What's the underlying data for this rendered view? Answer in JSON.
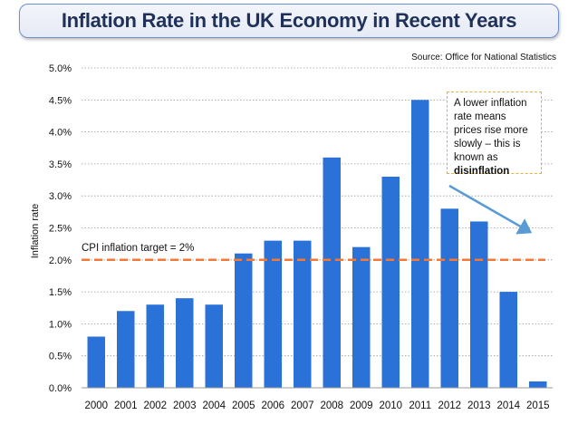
{
  "title": "Inflation Rate in the UK Economy in Recent Years",
  "source": "Source: Office for National Statistics",
  "target_label": "CPI inflation target = 2%",
  "annotation": {
    "text": "A lower inflation rate means prices rise more slowly – this is known as",
    "emphasis": "disinflation"
  },
  "colors": {
    "bar": "#2a72d8",
    "target_line": "#f07a3c",
    "arrow": "#5b9bd5",
    "title_border": "#6f8fd0"
  },
  "chart_data": {
    "type": "bar",
    "title": "Inflation Rate in the UK Economy in Recent Years",
    "xlabel": "",
    "ylabel": "Inflation rate",
    "categories": [
      "2000",
      "2001",
      "2002",
      "2003",
      "2004",
      "2005",
      "2006",
      "2007",
      "2008",
      "2009",
      "2010",
      "2011",
      "2012",
      "2013",
      "2014",
      "2015"
    ],
    "values": [
      0.8,
      1.2,
      1.3,
      1.4,
      1.3,
      2.1,
      2.3,
      2.3,
      3.6,
      2.2,
      3.3,
      4.5,
      2.8,
      2.6,
      1.5,
      0.1
    ],
    "ylim": [
      0,
      5
    ],
    "yticks": [
      0,
      0.5,
      1,
      1.5,
      2,
      2.5,
      3,
      3.5,
      4,
      4.5,
      5
    ],
    "ytick_labels": [
      "0.0%",
      "0.5%",
      "1.0%",
      "1.5%",
      "2.0%",
      "2.5%",
      "3.0%",
      "3.5%",
      "4.0%",
      "4.5%",
      "5.0%"
    ],
    "target": 2.0,
    "grid": true
  }
}
